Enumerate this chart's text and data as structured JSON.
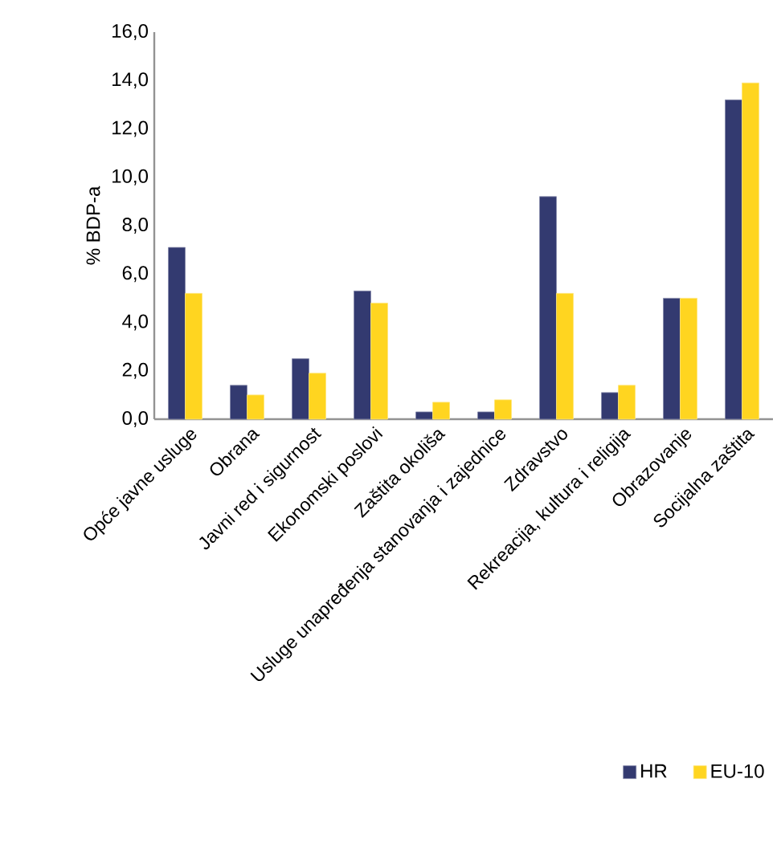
{
  "chart_data": {
    "type": "bar",
    "ylabel": "% BDP-a",
    "categories": [
      "Opće javne usluge",
      "Obrana",
      "Javni red i sigurnost",
      "Ekonomski poslovi",
      "Zaštita okoliša",
      "Usluge unapređenja stanovanja i zajednice",
      "Zdravstvo",
      "Rekreacija, kultura i religija",
      "Obrazovanje",
      "Socijalna zaštita"
    ],
    "series": [
      {
        "name": "HR",
        "color": "#333a70",
        "values": [
          7.1,
          1.4,
          2.5,
          5.3,
          0.3,
          0.3,
          9.2,
          1.1,
          5.0,
          13.2
        ]
      },
      {
        "name": "EU-10",
        "color": "#ffd520",
        "values": [
          5.2,
          1.0,
          1.9,
          4.8,
          0.7,
          0.8,
          5.2,
          1.4,
          5.0,
          13.9
        ]
      }
    ],
    "ylim": [
      0,
      16
    ],
    "yticks": [
      {
        "value": 0,
        "label": "0,0"
      },
      {
        "value": 2,
        "label": "2,0"
      },
      {
        "value": 4,
        "label": "4,0"
      },
      {
        "value": 6,
        "label": "6,0"
      },
      {
        "value": 8,
        "label": "8,0"
      },
      {
        "value": 10,
        "label": "10,0"
      },
      {
        "value": 12,
        "label": "12,0"
      },
      {
        "value": 14,
        "label": "14,0"
      },
      {
        "value": 16,
        "label": "16,0"
      }
    ],
    "grid": false,
    "legend": "bottom right"
  }
}
